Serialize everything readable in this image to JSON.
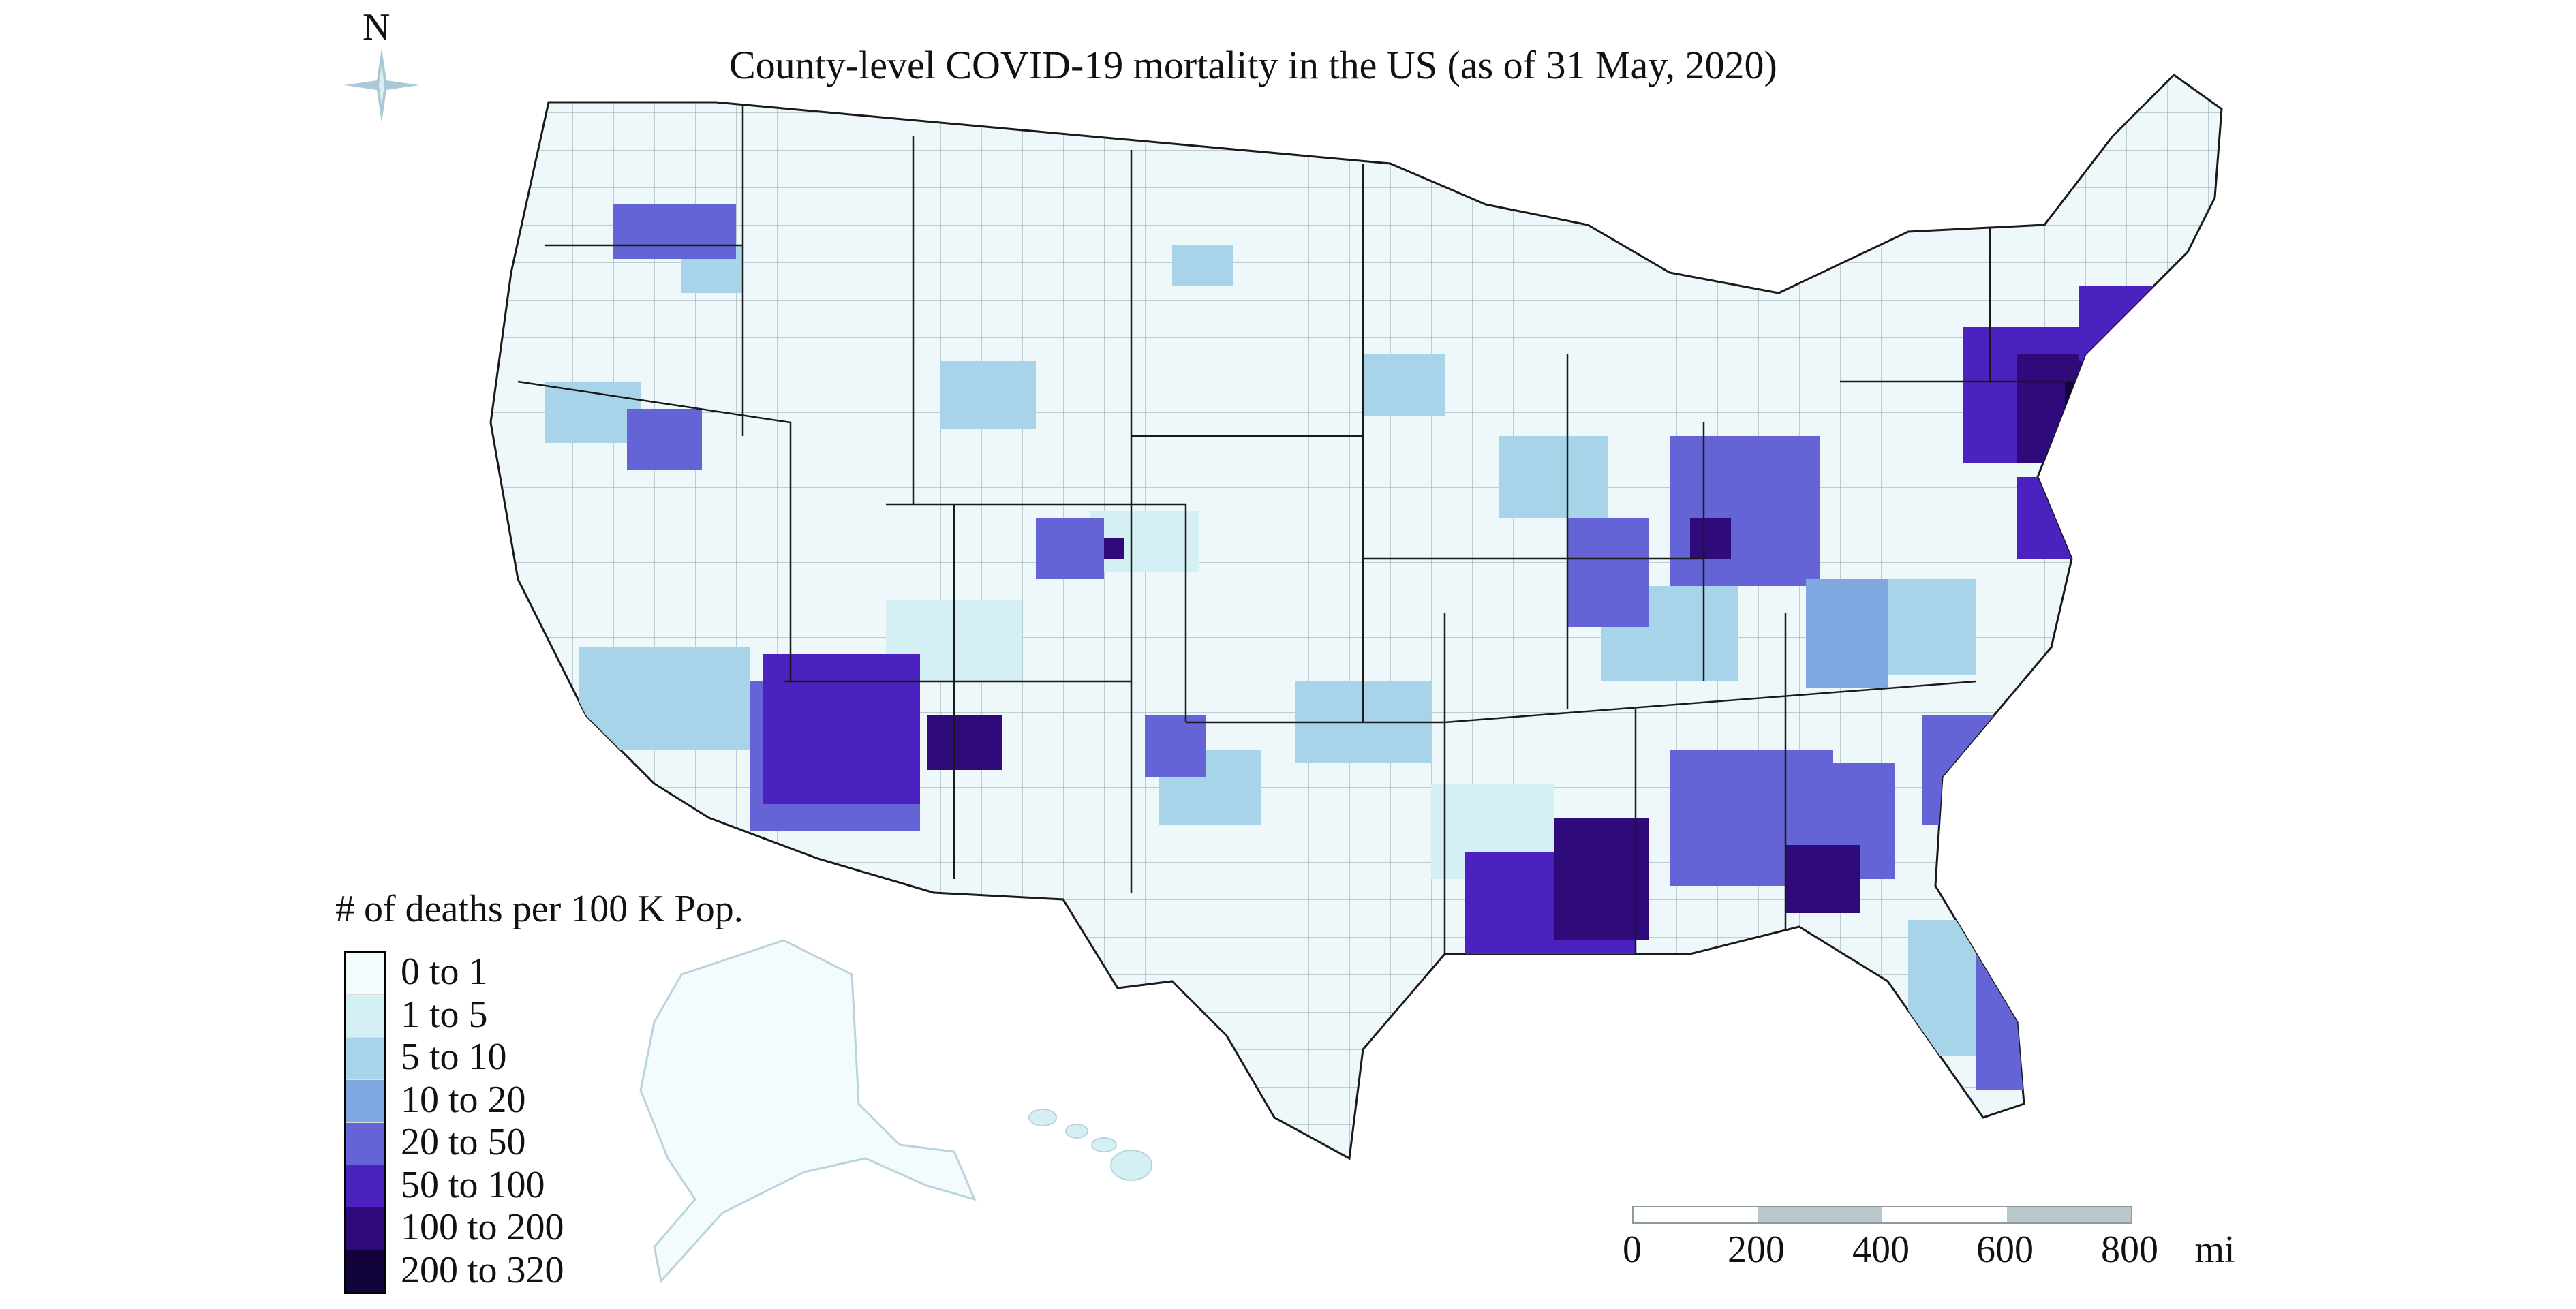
{
  "title": "County-level COVID-19 mortality in the US (as of 31 May, 2020)",
  "north_label": "N",
  "legend": {
    "title": "# of deaths per 100 K Pop.",
    "classes": [
      {
        "label": "0 to 1",
        "color": "#f4fbfd"
      },
      {
        "label": "1 to 5",
        "color": "#d4f0f4"
      },
      {
        "label": "5 to 10",
        "color": "#a8d4ea"
      },
      {
        "label": "10 to 20",
        "color": "#7fa8e0"
      },
      {
        "label": "20 to 50",
        "color": "#6464d6"
      },
      {
        "label": "50 to 100",
        "color": "#4b22c0"
      },
      {
        "label": "100 to 200",
        "color": "#2e0a7a"
      },
      {
        "label": "200 to 320",
        "color": "#12033a"
      }
    ]
  },
  "scale_bar": {
    "ticks": [
      "0",
      "200",
      "400",
      "600",
      "800"
    ],
    "unit": "mi",
    "colors": [
      "#ffffff",
      "#b9c6ca"
    ]
  },
  "colors": {
    "border": "#1a1a1a",
    "county_line": "#7a8a90",
    "base_fill": "#eef8fb"
  }
}
